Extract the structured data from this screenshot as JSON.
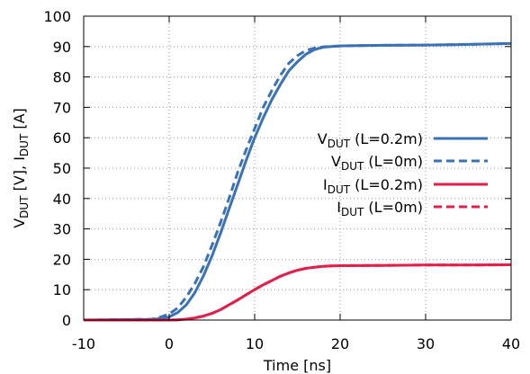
{
  "chart_data": {
    "type": "line",
    "xlabel": "Time [ns]",
    "ylabel": {
      "parts": [
        {
          "text": "V",
          "sub": false
        },
        {
          "text": "DUT",
          "sub": true
        },
        {
          "text": " [V], I",
          "sub": false
        },
        {
          "text": "DUT",
          "sub": true
        },
        {
          "text": " [A]",
          "sub": false
        }
      ]
    },
    "xlim": [
      -10,
      40
    ],
    "ylim": [
      0,
      100
    ],
    "xticks": [
      -10,
      0,
      10,
      20,
      30,
      40
    ],
    "yticks": [
      0,
      10,
      20,
      30,
      40,
      50,
      60,
      70,
      80,
      90,
      100
    ],
    "grid": true,
    "legend_position": "right",
    "series": [
      {
        "legend": [
          {
            "text": "V",
            "sub": false
          },
          {
            "text": "DUT",
            "sub": true
          },
          {
            "text": " (L=0.2m)",
            "sub": false
          }
        ],
        "color": "#3a72b5",
        "dashed": false,
        "x": [
          -10,
          -2,
          -1,
          0,
          1,
          2,
          3,
          4,
          5,
          6,
          7,
          8,
          9,
          10,
          11,
          12,
          13,
          14,
          15,
          16,
          17,
          18,
          19,
          20,
          22,
          25,
          30,
          35,
          40
        ],
        "y": [
          0,
          0.2,
          0.5,
          1,
          2.5,
          5,
          9,
          14.5,
          21,
          28.5,
          36.5,
          44.5,
          52.5,
          60,
          66.5,
          72.5,
          77.5,
          82,
          85,
          87.5,
          89,
          89.8,
          90,
          90.2,
          90.3,
          90.4,
          90.5,
          90.7,
          91
        ]
      },
      {
        "legend": [
          {
            "text": "V",
            "sub": false
          },
          {
            "text": "DUT",
            "sub": true
          },
          {
            "text": " (L=0m)",
            "sub": false
          }
        ],
        "color": "#3a72b5",
        "dashed": true,
        "x": [
          -10,
          -2,
          -1,
          0,
          1,
          2,
          3,
          4,
          5,
          6,
          7,
          8,
          9,
          10,
          11,
          12,
          13,
          14,
          15,
          16,
          17,
          18,
          19,
          20,
          22,
          25,
          30,
          35,
          40
        ],
        "y": [
          0,
          0.3,
          1,
          2,
          4,
          7.5,
          12,
          17.5,
          24.5,
          32,
          40,
          48.5,
          56,
          63,
          70,
          75.5,
          80.5,
          84.5,
          87,
          88.7,
          89.5,
          89.9,
          90.1,
          90.2,
          90.3,
          90.4,
          90.5,
          90.7,
          91
        ]
      },
      {
        "legend": [
          {
            "text": "I",
            "sub": false
          },
          {
            "text": "DUT",
            "sub": true
          },
          {
            "text": " (L=0.2m)",
            "sub": false
          }
        ],
        "color": "#e0204a",
        "dashed": false,
        "x": [
          -10,
          0,
          1,
          2,
          3,
          4,
          5,
          6,
          7,
          8,
          9,
          10,
          11,
          12,
          13,
          14,
          15,
          16,
          17,
          18,
          19,
          20,
          25,
          30,
          35,
          40
        ],
        "y": [
          0,
          0,
          0.1,
          0.3,
          0.7,
          1.3,
          2.2,
          3.4,
          5,
          6.6,
          8.3,
          10,
          11.6,
          13,
          14.4,
          15.5,
          16.4,
          17,
          17.4,
          17.7,
          17.8,
          17.9,
          18,
          18.1,
          18.1,
          18.2
        ]
      },
      {
        "legend": [
          {
            "text": "I",
            "sub": false
          },
          {
            "text": "DUT",
            "sub": true
          },
          {
            "text": " (L=0m)",
            "sub": false
          }
        ],
        "color": "#e0204a",
        "dashed": true,
        "x": [
          -10,
          0,
          1,
          2,
          3,
          4,
          5,
          6,
          7,
          8,
          9,
          10,
          11,
          12,
          13,
          14,
          15,
          16,
          17,
          18,
          19,
          20,
          25,
          30,
          35,
          40
        ],
        "y": [
          0,
          0,
          0.1,
          0.3,
          0.7,
          1.3,
          2.2,
          3.4,
          5,
          6.6,
          8.3,
          10,
          11.6,
          13,
          14.4,
          15.5,
          16.4,
          17,
          17.4,
          17.7,
          17.8,
          17.9,
          18,
          18.1,
          18.1,
          18.2
        ]
      }
    ]
  }
}
